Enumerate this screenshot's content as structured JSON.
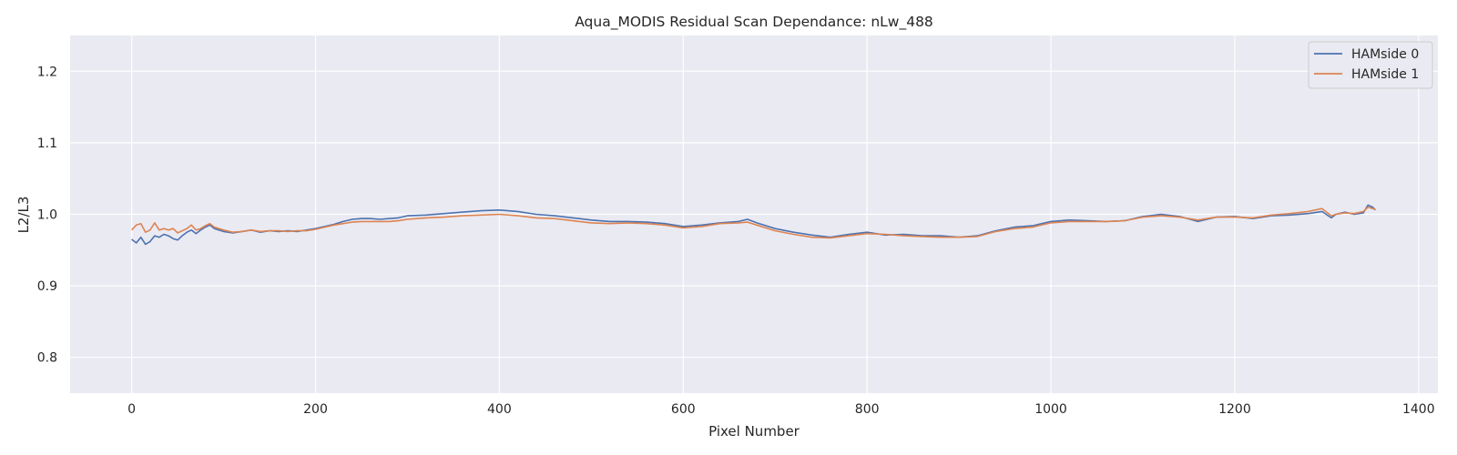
{
  "chart_data": {
    "type": "line",
    "title": "Aqua_MODIS Residual Scan Dependance: nLw_488",
    "xlabel": "Pixel Number",
    "ylabel": "L2/L3",
    "xlim": [
      -67,
      1421
    ],
    "ylim": [
      0.75,
      1.25
    ],
    "xticks": [
      0,
      200,
      400,
      600,
      800,
      1000,
      1200,
      1400
    ],
    "yticks": [
      0.8,
      0.9,
      1.0,
      1.1,
      1.2
    ],
    "grid": true,
    "legend_position": "top-right",
    "series": [
      {
        "name": "HAMside 0",
        "color": "#4c72b0",
        "x": [
          0,
          5,
          10,
          15,
          20,
          25,
          30,
          35,
          40,
          45,
          50,
          55,
          60,
          65,
          70,
          75,
          80,
          85,
          90,
          100,
          110,
          120,
          130,
          140,
          150,
          160,
          170,
          180,
          190,
          200,
          210,
          220,
          230,
          240,
          250,
          260,
          270,
          280,
          290,
          300,
          320,
          340,
          360,
          380,
          400,
          420,
          440,
          460,
          480,
          500,
          520,
          540,
          560,
          580,
          600,
          620,
          640,
          660,
          670,
          680,
          700,
          720,
          740,
          760,
          780,
          800,
          820,
          840,
          860,
          880,
          900,
          920,
          940,
          960,
          980,
          1000,
          1020,
          1040,
          1060,
          1080,
          1100,
          1120,
          1140,
          1160,
          1170,
          1180,
          1200,
          1220,
          1240,
          1260,
          1280,
          1295,
          1305,
          1310,
          1320,
          1330,
          1340,
          1345,
          1350,
          1353
        ],
        "y": [
          0.965,
          0.96,
          0.968,
          0.958,
          0.962,
          0.97,
          0.968,
          0.972,
          0.97,
          0.966,
          0.964,
          0.97,
          0.975,
          0.978,
          0.973,
          0.978,
          0.982,
          0.985,
          0.98,
          0.976,
          0.974,
          0.976,
          0.978,
          0.975,
          0.977,
          0.976,
          0.977,
          0.976,
          0.978,
          0.98,
          0.983,
          0.986,
          0.99,
          0.993,
          0.994,
          0.994,
          0.993,
          0.994,
          0.995,
          0.998,
          0.999,
          1.001,
          1.003,
          1.005,
          1.006,
          1.004,
          1.0,
          0.998,
          0.995,
          0.992,
          0.99,
          0.99,
          0.989,
          0.987,
          0.983,
          0.985,
          0.988,
          0.99,
          0.993,
          0.988,
          0.98,
          0.975,
          0.971,
          0.968,
          0.972,
          0.975,
          0.971,
          0.972,
          0.97,
          0.97,
          0.968,
          0.97,
          0.977,
          0.982,
          0.984,
          0.99,
          0.992,
          0.991,
          0.99,
          0.991,
          0.997,
          1.0,
          0.997,
          0.99,
          0.993,
          0.996,
          0.997,
          0.994,
          0.998,
          0.999,
          1.001,
          1.004,
          0.995,
          1.0,
          1.003,
          1.0,
          1.002,
          1.013,
          1.01,
          1.006
        ]
      },
      {
        "name": "HAMside 1",
        "color": "#dd8452",
        "x": [
          0,
          5,
          10,
          15,
          20,
          25,
          30,
          35,
          40,
          45,
          50,
          55,
          60,
          65,
          70,
          75,
          80,
          85,
          90,
          100,
          110,
          120,
          130,
          140,
          150,
          160,
          170,
          180,
          190,
          200,
          210,
          220,
          230,
          240,
          250,
          260,
          270,
          280,
          290,
          300,
          320,
          340,
          360,
          380,
          400,
          420,
          440,
          460,
          480,
          500,
          520,
          540,
          560,
          580,
          600,
          620,
          640,
          660,
          670,
          680,
          700,
          720,
          740,
          760,
          780,
          800,
          820,
          840,
          860,
          880,
          900,
          920,
          940,
          960,
          980,
          1000,
          1020,
          1040,
          1060,
          1080,
          1100,
          1120,
          1140,
          1160,
          1170,
          1180,
          1200,
          1220,
          1240,
          1260,
          1280,
          1295,
          1305,
          1310,
          1320,
          1330,
          1340,
          1345,
          1350,
          1353
        ],
        "y": [
          0.978,
          0.985,
          0.987,
          0.975,
          0.978,
          0.988,
          0.978,
          0.98,
          0.978,
          0.98,
          0.974,
          0.977,
          0.98,
          0.985,
          0.978,
          0.98,
          0.984,
          0.987,
          0.982,
          0.978,
          0.975,
          0.976,
          0.978,
          0.976,
          0.977,
          0.977,
          0.976,
          0.977,
          0.977,
          0.979,
          0.982,
          0.985,
          0.987,
          0.989,
          0.99,
          0.99,
          0.99,
          0.99,
          0.991,
          0.993,
          0.995,
          0.996,
          0.998,
          0.999,
          1.0,
          0.998,
          0.995,
          0.994,
          0.991,
          0.988,
          0.987,
          0.988,
          0.987,
          0.985,
          0.981,
          0.983,
          0.987,
          0.988,
          0.989,
          0.985,
          0.977,
          0.972,
          0.968,
          0.967,
          0.97,
          0.973,
          0.972,
          0.97,
          0.969,
          0.968,
          0.968,
          0.969,
          0.976,
          0.98,
          0.982,
          0.988,
          0.99,
          0.99,
          0.99,
          0.991,
          0.996,
          0.998,
          0.996,
          0.992,
          0.994,
          0.996,
          0.996,
          0.995,
          0.999,
          1.001,
          1.004,
          1.008,
          0.998,
          1.0,
          1.002,
          1.001,
          1.004,
          1.01,
          1.008,
          1.007
        ]
      }
    ]
  }
}
